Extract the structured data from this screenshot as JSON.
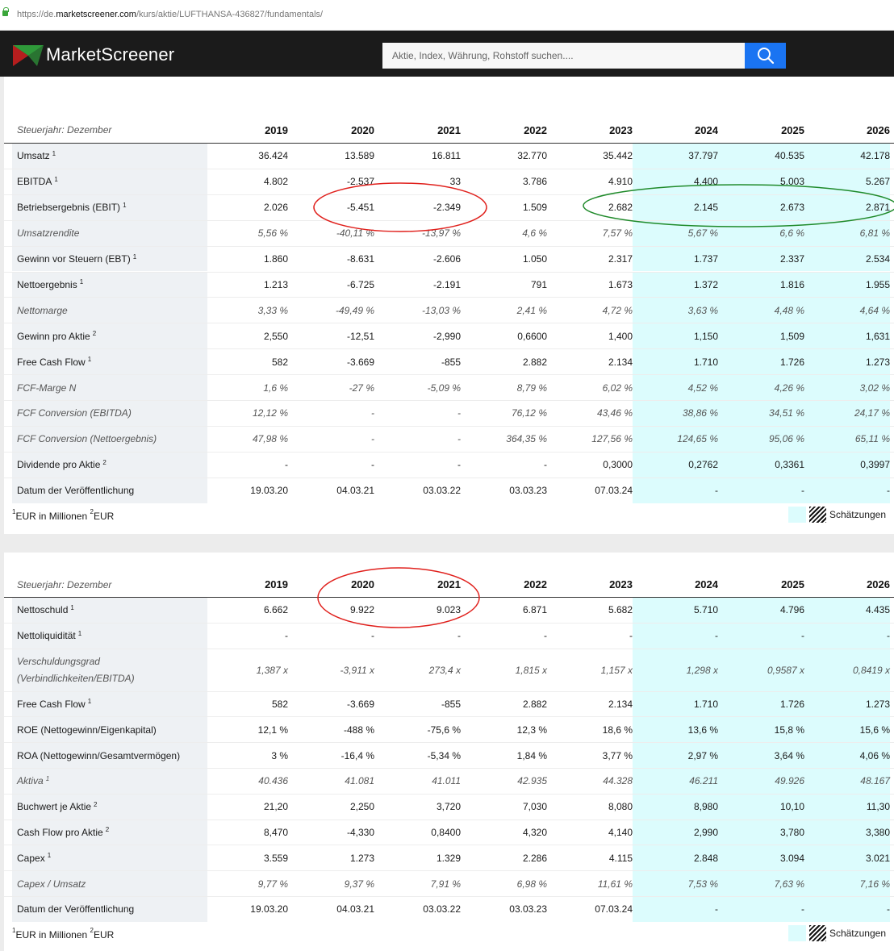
{
  "browser": {
    "url_prefix": "https://de.",
    "url_domain": "marketscreener.com",
    "url_path": "/kurs/aktie/LUFTHANSA-436827/fundamentals/"
  },
  "header": {
    "logo_text": "MarketScreener",
    "search_placeholder": "Aktie, Index, Währung, Rohstoff suchen....",
    "colors": {
      "header_bg": "#1b1b1b",
      "search_button": "#1a74f2",
      "estimate_bg": "#dcfcfd"
    }
  },
  "table1": {
    "fiscal_label": "Steuerjahr: Dezember",
    "years": [
      "2019",
      "2020",
      "2021",
      "2022",
      "2023",
      "2024",
      "2025",
      "2026"
    ],
    "rows": [
      {
        "label": "Umsatz",
        "sup": "1",
        "values": [
          "36.424",
          "13.589",
          "16.811",
          "32.770",
          "35.442",
          "37.797",
          "40.535",
          "42.178"
        ]
      },
      {
        "label": "EBITDA",
        "sup": "1",
        "values": [
          "4.802",
          "-2.537",
          "33",
          "3.786",
          "4.910",
          "4.400",
          "5.003",
          "5.267"
        ]
      },
      {
        "label": "Betriebsergebnis (EBIT)",
        "sup": "1",
        "values": [
          "2.026",
          "-5.451",
          "-2.349",
          "1.509",
          "2.682",
          "2.145",
          "2.673",
          "2.871"
        ]
      },
      {
        "label": "Umsatzrendite",
        "italic": true,
        "values": [
          "5,56 %",
          "-40,11 %",
          "-13,97 %",
          "4,6 %",
          "7,57 %",
          "5,67 %",
          "6,6 %",
          "6,81 %"
        ]
      },
      {
        "label": "Gewinn vor Steuern (EBT)",
        "sup": "1",
        "values": [
          "1.860",
          "-8.631",
          "-2.606",
          "1.050",
          "2.317",
          "1.737",
          "2.337",
          "2.534"
        ]
      },
      {
        "label": "Nettoergebnis",
        "sup": "1",
        "values": [
          "1.213",
          "-6.725",
          "-2.191",
          "791",
          "1.673",
          "1.372",
          "1.816",
          "1.955"
        ]
      },
      {
        "label": "Nettomarge",
        "italic": true,
        "values": [
          "3,33 %",
          "-49,49 %",
          "-13,03 %",
          "2,41 %",
          "4,72 %",
          "3,63 %",
          "4,48 %",
          "4,64 %"
        ]
      },
      {
        "label": "Gewinn pro Aktie",
        "sup": "2",
        "values": [
          "2,550",
          "-12,51",
          "-2,990",
          "0,6600",
          "1,400",
          "1,150",
          "1,509",
          "1,631"
        ]
      },
      {
        "label": "Free Cash Flow",
        "sup": "1",
        "values": [
          "582",
          "-3.669",
          "-855",
          "2.882",
          "2.134",
          "1.710",
          "1.726",
          "1.273"
        ]
      },
      {
        "label": "FCF-Marge N",
        "italic": true,
        "values": [
          "1,6 %",
          "-27 %",
          "-5,09 %",
          "8,79 %",
          "6,02 %",
          "4,52 %",
          "4,26 %",
          "3,02 %"
        ]
      },
      {
        "label": "FCF Conversion (EBITDA)",
        "italic": true,
        "values": [
          "12,12 %",
          "-",
          "-",
          "76,12 %",
          "43,46 %",
          "38,86 %",
          "34,51 %",
          "24,17 %"
        ]
      },
      {
        "label": "FCF Conversion (Nettoergebnis)",
        "italic": true,
        "values": [
          "47,98 %",
          "-",
          "-",
          "364,35 %",
          "127,56 %",
          "124,65 %",
          "95,06 %",
          "65,11 %"
        ]
      },
      {
        "label": "Dividende pro Aktie",
        "sup": "2",
        "values": [
          "-",
          "-",
          "-",
          "-",
          "0,3000",
          "0,2762",
          "0,3361",
          "0,3997"
        ]
      },
      {
        "label": "Datum der Veröffentlichung",
        "values": [
          "19.03.20",
          "04.03.21",
          "03.03.22",
          "03.03.23",
          "07.03.24",
          "-",
          "-",
          "-"
        ]
      }
    ],
    "footnote_1": "EUR in Millionen",
    "footnote_2": "EUR",
    "legend": "Schätzungen"
  },
  "table2": {
    "fiscal_label": "Steuerjahr: Dezember",
    "years": [
      "2019",
      "2020",
      "2021",
      "2022",
      "2023",
      "2024",
      "2025",
      "2026"
    ],
    "rows": [
      {
        "label": "Nettoschuld",
        "sup": "1",
        "values": [
          "6.662",
          "9.922",
          "9.023",
          "6.871",
          "5.682",
          "5.710",
          "4.796",
          "4.435"
        ]
      },
      {
        "label": "Nettoliquidität",
        "sup": "1",
        "values": [
          "-",
          "-",
          "-",
          "-",
          "-",
          "-",
          "-",
          "-"
        ]
      },
      {
        "label": "Verschuldungsgrad",
        "label2": "(Verbindlichkeiten/EBITDA)",
        "italic": true,
        "tall": true,
        "values": [
          "1,387 x",
          "-3,911 x",
          "273,4 x",
          "1,815 x",
          "1,157 x",
          "1,298 x",
          "0,9587 x",
          "0,8419 x"
        ]
      },
      {
        "label": "Free Cash Flow",
        "sup": "1",
        "values": [
          "582",
          "-3.669",
          "-855",
          "2.882",
          "2.134",
          "1.710",
          "1.726",
          "1.273"
        ]
      },
      {
        "label": "ROE (Nettogewinn/Eigenkapital)",
        "values": [
          "12,1 %",
          "-488 %",
          "-75,6 %",
          "12,3 %",
          "18,6 %",
          "13,6 %",
          "15,8 %",
          "15,6 %"
        ]
      },
      {
        "label": "ROA (Nettogewinn/Gesamtvermögen)",
        "values": [
          "3 %",
          "-16,4 %",
          "-5,34 %",
          "1,84 %",
          "3,77 %",
          "2,97 %",
          "3,64 %",
          "4,06 %"
        ]
      },
      {
        "label": "Aktiva",
        "sup": "1",
        "italic": true,
        "values": [
          "40.436",
          "41.081",
          "41.011",
          "42.935",
          "44.328",
          "46.211",
          "49.926",
          "48.167"
        ]
      },
      {
        "label": "Buchwert je Aktie",
        "sup": "2",
        "values": [
          "21,20",
          "2,250",
          "3,720",
          "7,030",
          "8,080",
          "8,980",
          "10,10",
          "11,30"
        ]
      },
      {
        "label": "Cash Flow pro Aktie",
        "sup": "2",
        "values": [
          "8,470",
          "-4,330",
          "0,8400",
          "4,320",
          "4,140",
          "2,990",
          "3,780",
          "3,380"
        ]
      },
      {
        "label": "Capex",
        "sup": "1",
        "values": [
          "3.559",
          "1.273",
          "1.329",
          "2.286",
          "4.115",
          "2.848",
          "3.094",
          "3.021"
        ]
      },
      {
        "label": "Capex / Umsatz",
        "italic": true,
        "values": [
          "9,77 %",
          "9,37 %",
          "7,91 %",
          "6,98 %",
          "11,61 %",
          "7,53 %",
          "7,63 %",
          "7,16 %"
        ]
      },
      {
        "label": "Datum der Veröffentlichung",
        "values": [
          "19.03.20",
          "04.03.21",
          "03.03.22",
          "03.03.23",
          "07.03.24",
          "-",
          "-",
          "-"
        ]
      }
    ],
    "footnote_1": "EUR in Millionen",
    "footnote_2": "EUR",
    "legend": "Schätzungen"
  },
  "annotations": {
    "red": "#e0201c",
    "green": "#1f8a2a"
  }
}
